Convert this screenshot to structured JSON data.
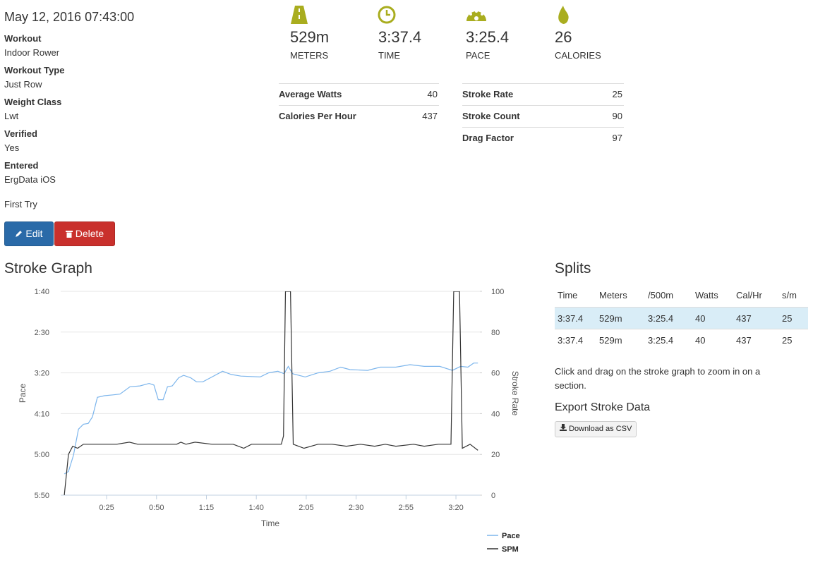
{
  "header": {
    "date": "May 12, 2016 07:43:00"
  },
  "details": [
    {
      "label": "Workout",
      "value": "Indoor Rower"
    },
    {
      "label": "Workout Type",
      "value": "Just Row"
    },
    {
      "label": "Weight Class",
      "value": "Lwt"
    },
    {
      "label": "Verified",
      "value": "Yes"
    },
    {
      "label": "Entered",
      "value": "ErgData iOS"
    }
  ],
  "comment": "First Try",
  "buttons": {
    "edit": "Edit",
    "delete": "Delete"
  },
  "stats": [
    {
      "value": "529m",
      "label": "METERS"
    },
    {
      "value": "3:37.4",
      "label": "TIME"
    },
    {
      "value": "3:25.4",
      "label": "PACE"
    },
    {
      "value": 26,
      "label": "CALORIES"
    }
  ],
  "metrics": [
    [
      {
        "label": "Average Watts",
        "value": 40
      },
      {
        "label": "Calories Per Hour",
        "value": 437
      }
    ],
    [
      {
        "label": "Stroke Rate",
        "value": 25
      },
      {
        "label": "Stroke Count",
        "value": 90
      },
      {
        "label": "Drag Factor",
        "value": 97
      }
    ]
  ],
  "stroke_graph_title": "Stroke Graph",
  "chart_data": {
    "type": "line",
    "xlabel": "Time",
    "ylabel": "Pace",
    "y2label": "Stroke Rate",
    "grid": true,
    "xlim": [
      2,
      212
    ],
    "xticks": [
      {
        "value": 25,
        "label": "0:25"
      },
      {
        "value": 50,
        "label": "0:50"
      },
      {
        "value": 75,
        "label": "1:15"
      },
      {
        "value": 100,
        "label": "1:40"
      },
      {
        "value": 125,
        "label": "2:05"
      },
      {
        "value": 150,
        "label": "2:30"
      },
      {
        "value": 175,
        "label": "2:55"
      },
      {
        "value": 200,
        "label": "3:20"
      }
    ],
    "ylim": [
      350,
      100
    ],
    "yticks": [
      {
        "value": 100,
        "label": "1:40"
      },
      {
        "value": 150,
        "label": "2:30"
      },
      {
        "value": 200,
        "label": "3:20"
      },
      {
        "value": 250,
        "label": "4:10"
      },
      {
        "value": 300,
        "label": "5:00"
      },
      {
        "value": 350,
        "label": "5:50"
      }
    ],
    "y2lim": [
      0,
      100
    ],
    "y2ticks": [
      0,
      20,
      40,
      60,
      80,
      100
    ],
    "series": [
      {
        "name": "Pace",
        "color": "#7cb5ec",
        "x": [
          3.8,
          5.9,
          8.4,
          10.9,
          13.4,
          15.8,
          17.9,
          20.4,
          23.9,
          28.2,
          31.7,
          36.7,
          41.7,
          46.3,
          48.7,
          50.9,
          53.3,
          55.5,
          57.9,
          61.1,
          63.6,
          67.1,
          70.0,
          73.2,
          77.8,
          83.1,
          87.4,
          92.3,
          101.9,
          106.1,
          110.8,
          113.9,
          116.0,
          118.2,
          124.5,
          130.9,
          136.9,
          142.3,
          146.9,
          155.7,
          162.1,
          169.9,
          177.0,
          184.1,
          191.9,
          198.2,
          202.4,
          206.0,
          208.9,
          211.0
        ],
        "values": [
          324,
          321,
          301,
          269,
          263,
          262,
          254,
          230,
          228,
          227,
          226,
          217,
          216,
          213,
          215,
          233,
          233,
          217,
          216,
          206,
          203,
          206,
          211,
          211,
          205,
          198,
          202,
          204,
          205,
          200,
          198,
          201,
          192,
          201,
          205,
          200,
          198,
          193,
          196,
          197,
          193,
          193,
          190,
          192,
          192,
          197,
          192,
          193,
          188,
          188
        ]
      },
      {
        "name": "SPM",
        "color": "#333333",
        "axis": "y2",
        "x": [
          3.8,
          5.9,
          8.0,
          10.5,
          13.4,
          19.3,
          26.4,
          30.0,
          36.4,
          40.6,
          44.9,
          48.7,
          57.2,
          60.1,
          62.2,
          64.7,
          69.3,
          77.8,
          84.9,
          88.4,
          93.7,
          97.6,
          102.6,
          109.7,
          112.5,
          113.6,
          114.6,
          117.1,
          118.5,
          123.9,
          130.9,
          138.0,
          145.1,
          152.2,
          159.3,
          164.6,
          169.9,
          178.8,
          184.1,
          191.2,
          197.5,
          198.9,
          201.8,
          203.2,
          207.1,
          211.0
        ],
        "values": [
          0,
          20,
          24,
          23,
          25,
          25,
          25,
          25,
          26,
          25,
          25,
          25,
          25,
          25,
          26,
          25,
          26,
          25,
          25,
          25,
          23,
          25,
          25,
          25,
          25,
          29,
          100,
          100,
          25,
          23,
          25,
          25,
          24,
          25,
          24,
          25,
          24,
          25,
          24,
          25,
          25,
          100,
          100,
          23,
          25,
          22
        ]
      }
    ]
  },
  "splits": {
    "title": "Splits",
    "columns": [
      "Time",
      "Meters",
      "/500m",
      "Watts",
      "Cal/Hr",
      "s/m"
    ],
    "rows": [
      [
        "3:37.4",
        "529m",
        "3:25.4",
        40,
        437,
        25
      ],
      [
        "3:37.4",
        "529m",
        "3:25.4",
        40,
        437,
        25
      ]
    ]
  },
  "zoom_hint": "Click and drag on the stroke graph to zoom in on a section.",
  "export": {
    "title": "Export Stroke Data",
    "button": "Download as CSV"
  }
}
